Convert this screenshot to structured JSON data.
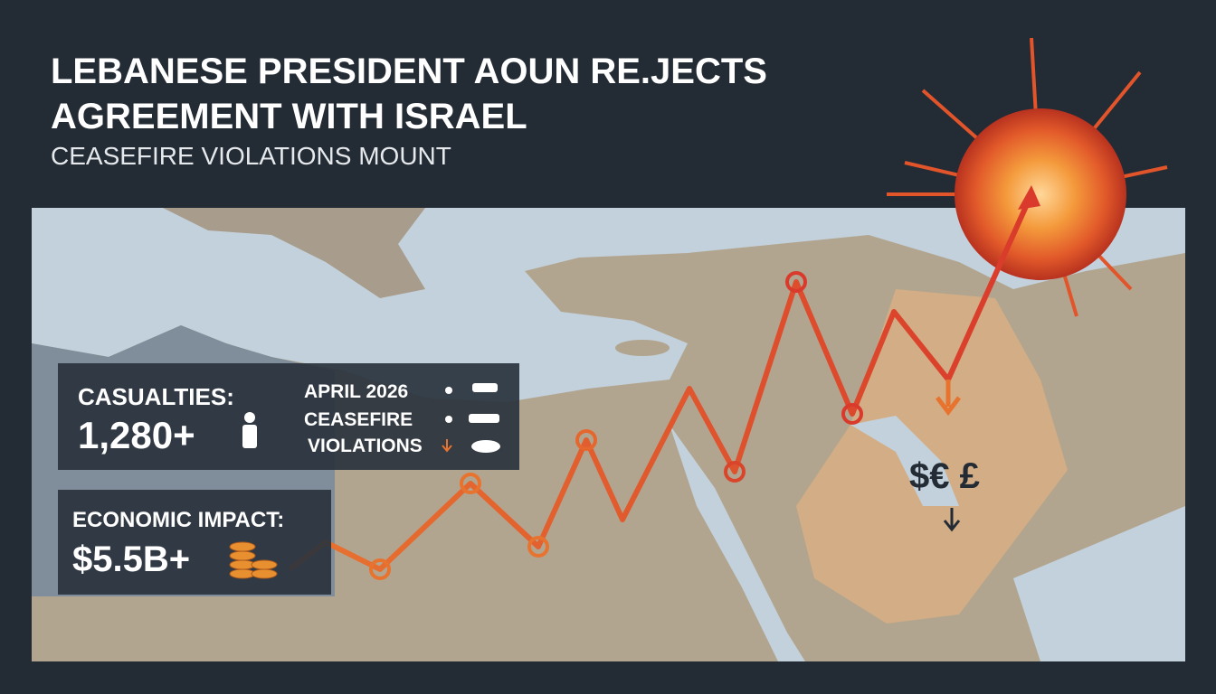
{
  "header": {
    "title_lines": [
      "LEBANESE PRESIDENT AOUN RE.JECTS",
      "AGREEMENT WITH ISRAEL"
    ],
    "subtitle": "CEASEFIRE VIOLATIONS MOUNT"
  },
  "casualties": {
    "label": "CASUALTIES:",
    "value": "1,280+"
  },
  "legend": {
    "items": [
      "APRIL 2026",
      "CEASEFIRE",
      "VIOLATIONS"
    ]
  },
  "economic": {
    "label": "ECONOMIC IMPACT:",
    "value": "$5.5B+"
  },
  "currency": "$€ £"
}
